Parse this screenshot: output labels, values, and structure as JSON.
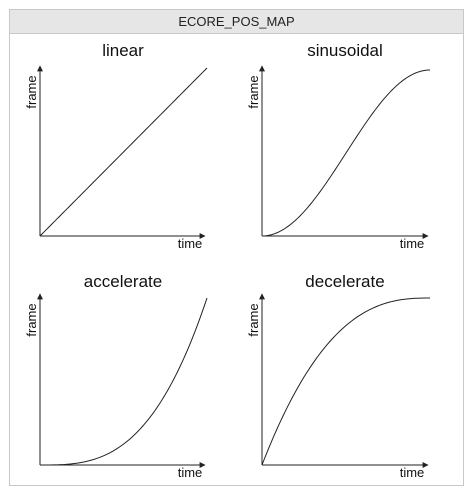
{
  "window": {
    "title": "ECORE_POS_MAP"
  },
  "panels": [
    {
      "title": "linear",
      "xlabel": "time",
      "ylabel": "frame",
      "curve": "linear"
    },
    {
      "title": "sinusoidal",
      "xlabel": "time",
      "ylabel": "frame",
      "curve": "sinusoidal"
    },
    {
      "title": "accelerate",
      "xlabel": "time",
      "ylabel": "frame",
      "curve": "accelerate"
    },
    {
      "title": "decelerate",
      "xlabel": "time",
      "ylabel": "frame",
      "curve": "decelerate"
    }
  ],
  "colors": {
    "line": "#222222",
    "axis": "#222222"
  }
}
